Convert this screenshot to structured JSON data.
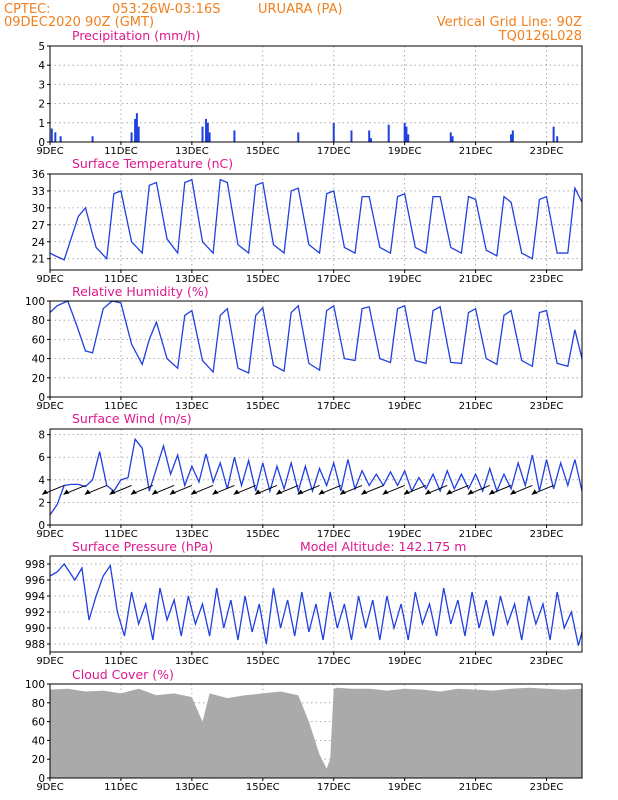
{
  "header": {
    "source": "CPTEC:",
    "coords": "053:26W-03:16S",
    "station": "URUARA (PA)",
    "date": "09DEC2020 90Z (GMT)",
    "grid_note": "Vertical Grid Line: 90Z",
    "code": "TQ0126L028"
  },
  "model_altitude": "Model Altitude: 142.175 m",
  "colors": {
    "header": "#f08020",
    "title": "#e01890",
    "series": "#2040e0",
    "cloud": "#aaaaaa"
  },
  "chart_data": [
    {
      "type": "bar",
      "title": "Precipitation (mm/h)",
      "ylim": [
        0,
        5
      ],
      "yticks": [
        0,
        1,
        2,
        3,
        4,
        5
      ],
      "xticks": [
        "9DEC",
        "11DEC",
        "13DEC",
        "15DEC",
        "17DEC",
        "19DEC",
        "21DEC",
        "23DEC"
      ],
      "x_unit": "day offset from 09DEC",
      "x": [
        0.05,
        0.15,
        0.3,
        1.2,
        2.3,
        2.4,
        2.45,
        2.5,
        4.3,
        4.4,
        4.45,
        4.5,
        5.2,
        7.0,
        8.0,
        8.5,
        9.0,
        9.05,
        9.55,
        10.0,
        10.05,
        10.1,
        11.3,
        11.35,
        13.0,
        13.05,
        14.2,
        14.3
      ],
      "values": [
        0.7,
        0.5,
        0.3,
        0.3,
        0.5,
        1.2,
        1.5,
        0.8,
        0.8,
        1.2,
        1.0,
        0.5,
        0.6,
        0.5,
        1.0,
        0.6,
        0.6,
        0.2,
        0.9,
        1.0,
        0.8,
        0.4,
        0.5,
        0.3,
        0.4,
        0.6,
        0.8,
        0.3
      ]
    },
    {
      "type": "line",
      "title": "Surface Temperature (nC)",
      "ylim": [
        19,
        36
      ],
      "yticks": [
        21,
        24,
        27,
        30,
        33,
        36
      ],
      "xticks": [
        "9DEC",
        "11DEC",
        "13DEC",
        "15DEC",
        "17DEC",
        "19DEC",
        "21DEC",
        "23DEC"
      ],
      "x_unit": "day offset from 09DEC",
      "x": [
        0,
        0.15,
        0.4,
        0.8,
        1.0,
        1.3,
        1.6,
        1.8,
        2.0,
        2.3,
        2.6,
        2.8,
        3.0,
        3.3,
        3.6,
        3.8,
        4.0,
        4.3,
        4.6,
        4.8,
        5.0,
        5.3,
        5.6,
        5.8,
        6.0,
        6.3,
        6.6,
        6.8,
        7.0,
        7.3,
        7.6,
        7.8,
        8.0,
        8.3,
        8.6,
        8.8,
        9.0,
        9.3,
        9.6,
        9.8,
        10.0,
        10.3,
        10.6,
        10.8,
        11.0,
        11.3,
        11.6,
        11.8,
        12.0,
        12.3,
        12.6,
        12.8,
        13.0,
        13.3,
        13.6,
        13.8,
        14.0,
        14.3,
        14.6,
        14.8,
        15.0
      ],
      "values": [
        22,
        21.5,
        20.8,
        28.5,
        30,
        23,
        21,
        32.5,
        33,
        24,
        22,
        34,
        34.5,
        24.5,
        22,
        34.5,
        35,
        24,
        22,
        35,
        34.5,
        23.5,
        22,
        34,
        34.5,
        23.5,
        22,
        33,
        33.5,
        23.5,
        22,
        32.5,
        33,
        23,
        22,
        32,
        32,
        23,
        22,
        32,
        32.5,
        23,
        22,
        32,
        32,
        23,
        22,
        32,
        31.5,
        22.5,
        21.5,
        32,
        31,
        22,
        21,
        31.5,
        32,
        22,
        22,
        33.5,
        31
      ]
    },
    {
      "type": "line",
      "title": "Relative Humidity (%)",
      "ylim": [
        0,
        100
      ],
      "yticks": [
        0,
        20,
        40,
        60,
        80,
        100
      ],
      "xticks": [
        "9DEC",
        "11DEC",
        "13DEC",
        "15DEC",
        "17DEC",
        "19DEC",
        "21DEC",
        "23DEC"
      ],
      "x_unit": "day offset from 09DEC",
      "x": [
        0,
        0.2,
        0.5,
        0.75,
        1.0,
        1.2,
        1.5,
        1.75,
        2.0,
        2.3,
        2.6,
        2.8,
        3.0,
        3.3,
        3.6,
        3.8,
        4.0,
        4.3,
        4.6,
        4.8,
        5.0,
        5.3,
        5.6,
        5.8,
        6.0,
        6.3,
        6.6,
        6.8,
        7.0,
        7.3,
        7.6,
        7.8,
        8.0,
        8.3,
        8.6,
        8.8,
        9.0,
        9.3,
        9.6,
        9.8,
        10.0,
        10.3,
        10.6,
        10.8,
        11.0,
        11.3,
        11.6,
        11.8,
        12.0,
        12.3,
        12.6,
        12.8,
        13.0,
        13.3,
        13.6,
        13.8,
        14.0,
        14.3,
        14.6,
        14.8,
        15.0
      ],
      "values": [
        88,
        95,
        100,
        75,
        48,
        46,
        92,
        100,
        98,
        55,
        34,
        60,
        78,
        40,
        30,
        85,
        90,
        38,
        26,
        85,
        92,
        30,
        25,
        85,
        93,
        33,
        27,
        88,
        95,
        35,
        28,
        90,
        95,
        40,
        38,
        92,
        94,
        40,
        36,
        92,
        95,
        38,
        35,
        90,
        94,
        36,
        35,
        88,
        92,
        40,
        34,
        85,
        90,
        38,
        32,
        88,
        90,
        35,
        32,
        70,
        40
      ]
    },
    {
      "type": "line",
      "title": "Surface Wind (m/s)",
      "ylim": [
        0,
        8.5
      ],
      "yticks": [
        0,
        2,
        4,
        6,
        8
      ],
      "xticks": [
        "9DEC",
        "11DEC",
        "13DEC",
        "15DEC",
        "17DEC",
        "19DEC",
        "21DEC",
        "23DEC"
      ],
      "x_unit": "day offset from 09DEC",
      "x": [
        0,
        0.2,
        0.4,
        0.6,
        0.8,
        1.0,
        1.2,
        1.4,
        1.6,
        1.8,
        2.0,
        2.2,
        2.4,
        2.6,
        2.8,
        3.0,
        3.2,
        3.4,
        3.6,
        3.8,
        4.0,
        4.2,
        4.4,
        4.6,
        4.8,
        5.0,
        5.2,
        5.4,
        5.6,
        5.8,
        6.0,
        6.2,
        6.4,
        6.6,
        6.8,
        7.0,
        7.2,
        7.4,
        7.6,
        7.8,
        8.0,
        8.2,
        8.4,
        8.6,
        8.8,
        9.0,
        9.2,
        9.4,
        9.6,
        9.8,
        10.0,
        10.2,
        10.4,
        10.6,
        10.8,
        11.0,
        11.2,
        11.4,
        11.6,
        11.8,
        12.0,
        12.2,
        12.4,
        12.6,
        12.8,
        13.0,
        13.2,
        13.4,
        13.6,
        13.8,
        14.0,
        14.2,
        14.4,
        14.6,
        14.8,
        15.0
      ],
      "values": [
        0.9,
        1.8,
        3.5,
        3.6,
        3.6,
        3.4,
        4.0,
        6.5,
        3.5,
        3.0,
        4.0,
        4.2,
        7.6,
        6.8,
        3.0,
        5.0,
        7.0,
        4.5,
        6.2,
        3.5,
        5.2,
        3.8,
        6.3,
        3.8,
        5.5,
        3.2,
        6.0,
        3.5,
        5.7,
        3.0,
        5.5,
        3.0,
        5.2,
        3.2,
        5.5,
        3.0,
        5.2,
        3.0,
        5.0,
        3.5,
        5.5,
        3.0,
        5.8,
        3.2,
        4.8,
        3.5,
        4.5,
        3.5,
        4.7,
        3.5,
        4.8,
        3.0,
        4.2,
        3.2,
        4.5,
        3.0,
        4.8,
        3.2,
        4.5,
        3.2,
        4.5,
        3.0,
        5.0,
        3.0,
        4.5,
        3.2,
        5.5,
        3.5,
        6.2,
        3.0,
        5.8,
        3.2,
        5.5,
        3.5,
        5.8,
        3.0
      ]
    },
    {
      "type": "line",
      "title": "Surface Pressure (hPa)",
      "ylim": [
        987,
        999
      ],
      "yticks": [
        988,
        990,
        992,
        994,
        996,
        998
      ],
      "xticks": [
        "9DEC",
        "11DEC",
        "13DEC",
        "15DEC",
        "17DEC",
        "19DEC",
        "21DEC",
        "23DEC"
      ],
      "x_unit": "day offset from 09DEC",
      "x": [
        0,
        0.2,
        0.4,
        0.7,
        0.9,
        1.1,
        1.3,
        1.5,
        1.7,
        1.9,
        2.1,
        2.3,
        2.5,
        2.7,
        2.9,
        3.1,
        3.3,
        3.5,
        3.7,
        3.9,
        4.1,
        4.3,
        4.5,
        4.7,
        4.9,
        5.1,
        5.3,
        5.5,
        5.7,
        5.9,
        6.1,
        6.3,
        6.5,
        6.7,
        6.9,
        7.1,
        7.3,
        7.5,
        7.7,
        7.9,
        8.1,
        8.3,
        8.5,
        8.7,
        8.9,
        9.1,
        9.3,
        9.5,
        9.7,
        9.9,
        10.1,
        10.3,
        10.5,
        10.7,
        10.9,
        11.1,
        11.3,
        11.5,
        11.7,
        11.9,
        12.1,
        12.3,
        12.5,
        12.7,
        12.9,
        13.1,
        13.3,
        13.5,
        13.7,
        13.9,
        14.1,
        14.3,
        14.5,
        14.7,
        14.9,
        15.0
      ],
      "values": [
        996.5,
        997.0,
        998.0,
        996.0,
        997.5,
        991.0,
        994.0,
        996.5,
        997.8,
        992.0,
        989.0,
        994.5,
        990.5,
        993.0,
        988.5,
        995.0,
        991.0,
        993.5,
        989.0,
        994.0,
        990.5,
        993.0,
        989.0,
        995.0,
        990.0,
        993.5,
        988.5,
        994.0,
        989.5,
        993.0,
        988.0,
        995.0,
        990.0,
        993.5,
        989.0,
        994.5,
        989.5,
        993.0,
        988.5,
        994.5,
        990.0,
        993.0,
        988.5,
        994.0,
        990.0,
        993.5,
        988.5,
        994.0,
        990.0,
        993.0,
        988.5,
        994.5,
        990.5,
        993.0,
        989.0,
        995.0,
        990.5,
        993.5,
        989.0,
        994.5,
        990.0,
        993.5,
        989.0,
        994.0,
        990.5,
        993.0,
        988.5,
        994.0,
        990.5,
        993.0,
        988.5,
        994.5,
        990.0,
        992.0,
        987.8,
        989.5
      ]
    },
    {
      "type": "area",
      "title": "Cloud Cover (%)",
      "ylim": [
        0,
        100
      ],
      "yticks": [
        0,
        20,
        40,
        60,
        80,
        100
      ],
      "xticks": [
        "9DEC",
        "11DEC",
        "13DEC",
        "15DEC",
        "17DEC",
        "19DEC",
        "21DEC",
        "23DEC"
      ],
      "x_unit": "day offset from 09DEC",
      "x": [
        0,
        0.5,
        1.0,
        1.5,
        2.0,
        2.5,
        3.0,
        3.5,
        4.0,
        4.3,
        4.5,
        5.0,
        5.5,
        6.0,
        6.5,
        7.0,
        7.3,
        7.6,
        7.8,
        7.9,
        8.0,
        8.1,
        8.5,
        9.0,
        9.5,
        10.0,
        10.5,
        11.0,
        11.5,
        12.0,
        12.5,
        13.0,
        13.5,
        14.0,
        14.5,
        15.0
      ],
      "values": [
        94,
        95,
        92,
        93,
        90,
        95,
        88,
        90,
        86,
        60,
        90,
        85,
        88,
        90,
        92,
        88,
        60,
        25,
        10,
        20,
        95,
        96,
        95,
        95,
        93,
        95,
        94,
        92,
        95,
        94,
        93,
        95,
        96,
        95,
        94,
        95
      ]
    }
  ]
}
